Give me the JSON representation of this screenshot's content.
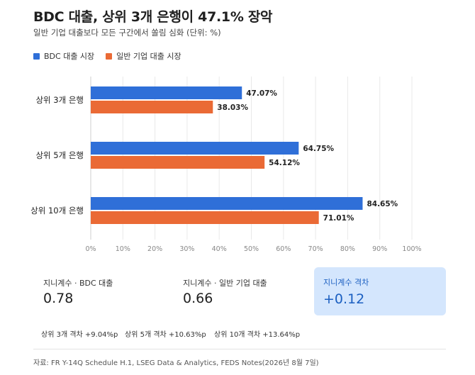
{
  "header": {
    "title": "BDC 대출, 상위 3개 은행이 47.1% 장악",
    "subtitle": "일반 기업 대출보다 모든 구간에서 쏠림 심화 (단위: %)"
  },
  "colors": {
    "bdc": "#2f6fd8",
    "corporate": "#ea6a35",
    "highlight_bg": "#d4e6fd"
  },
  "chart_data": {
    "type": "bar",
    "orientation": "horizontal",
    "categories": [
      "상위 3개 은행",
      "상위 5개 은행",
      "상위 10개 은행"
    ],
    "series": [
      {
        "name": "BDC 대출 시장",
        "values": [
          47.07,
          64.75,
          84.65
        ],
        "labels": [
          "47.07%",
          "64.75%",
          "84.65%"
        ]
      },
      {
        "name": "일반 기업 대출 시장",
        "values": [
          38.03,
          54.12,
          71.01
        ],
        "labels": [
          "38.03%",
          "54.12%",
          "71.01%"
        ]
      }
    ],
    "xlim": [
      0,
      100
    ],
    "x_ticks": [
      "0%",
      "10%",
      "20%",
      "30%",
      "40%",
      "50%",
      "60%",
      "70%",
      "80%",
      "90%",
      "100%"
    ],
    "grid": "vertical",
    "legend": "top-left"
  },
  "stats": {
    "bdc_gini_label": "지니계수 · BDC 대출",
    "bdc_gini_value": "0.78",
    "corp_gini_label": "지니계수 · 일반 기업 대출",
    "corp_gini_value": "0.66",
    "gap_label": "지니계수 격차",
    "gap_value": "+0.12"
  },
  "gap_notes": [
    "상위 3개 격차 +9.04%p",
    "상위 5개 격차 +10.63%p",
    "상위 10개 격차 +13.64%p"
  ],
  "source": "자료: FR Y-14Q Schedule H.1, LSEG Data & Analytics, FEDS Notes(2026년 8월 7일)"
}
